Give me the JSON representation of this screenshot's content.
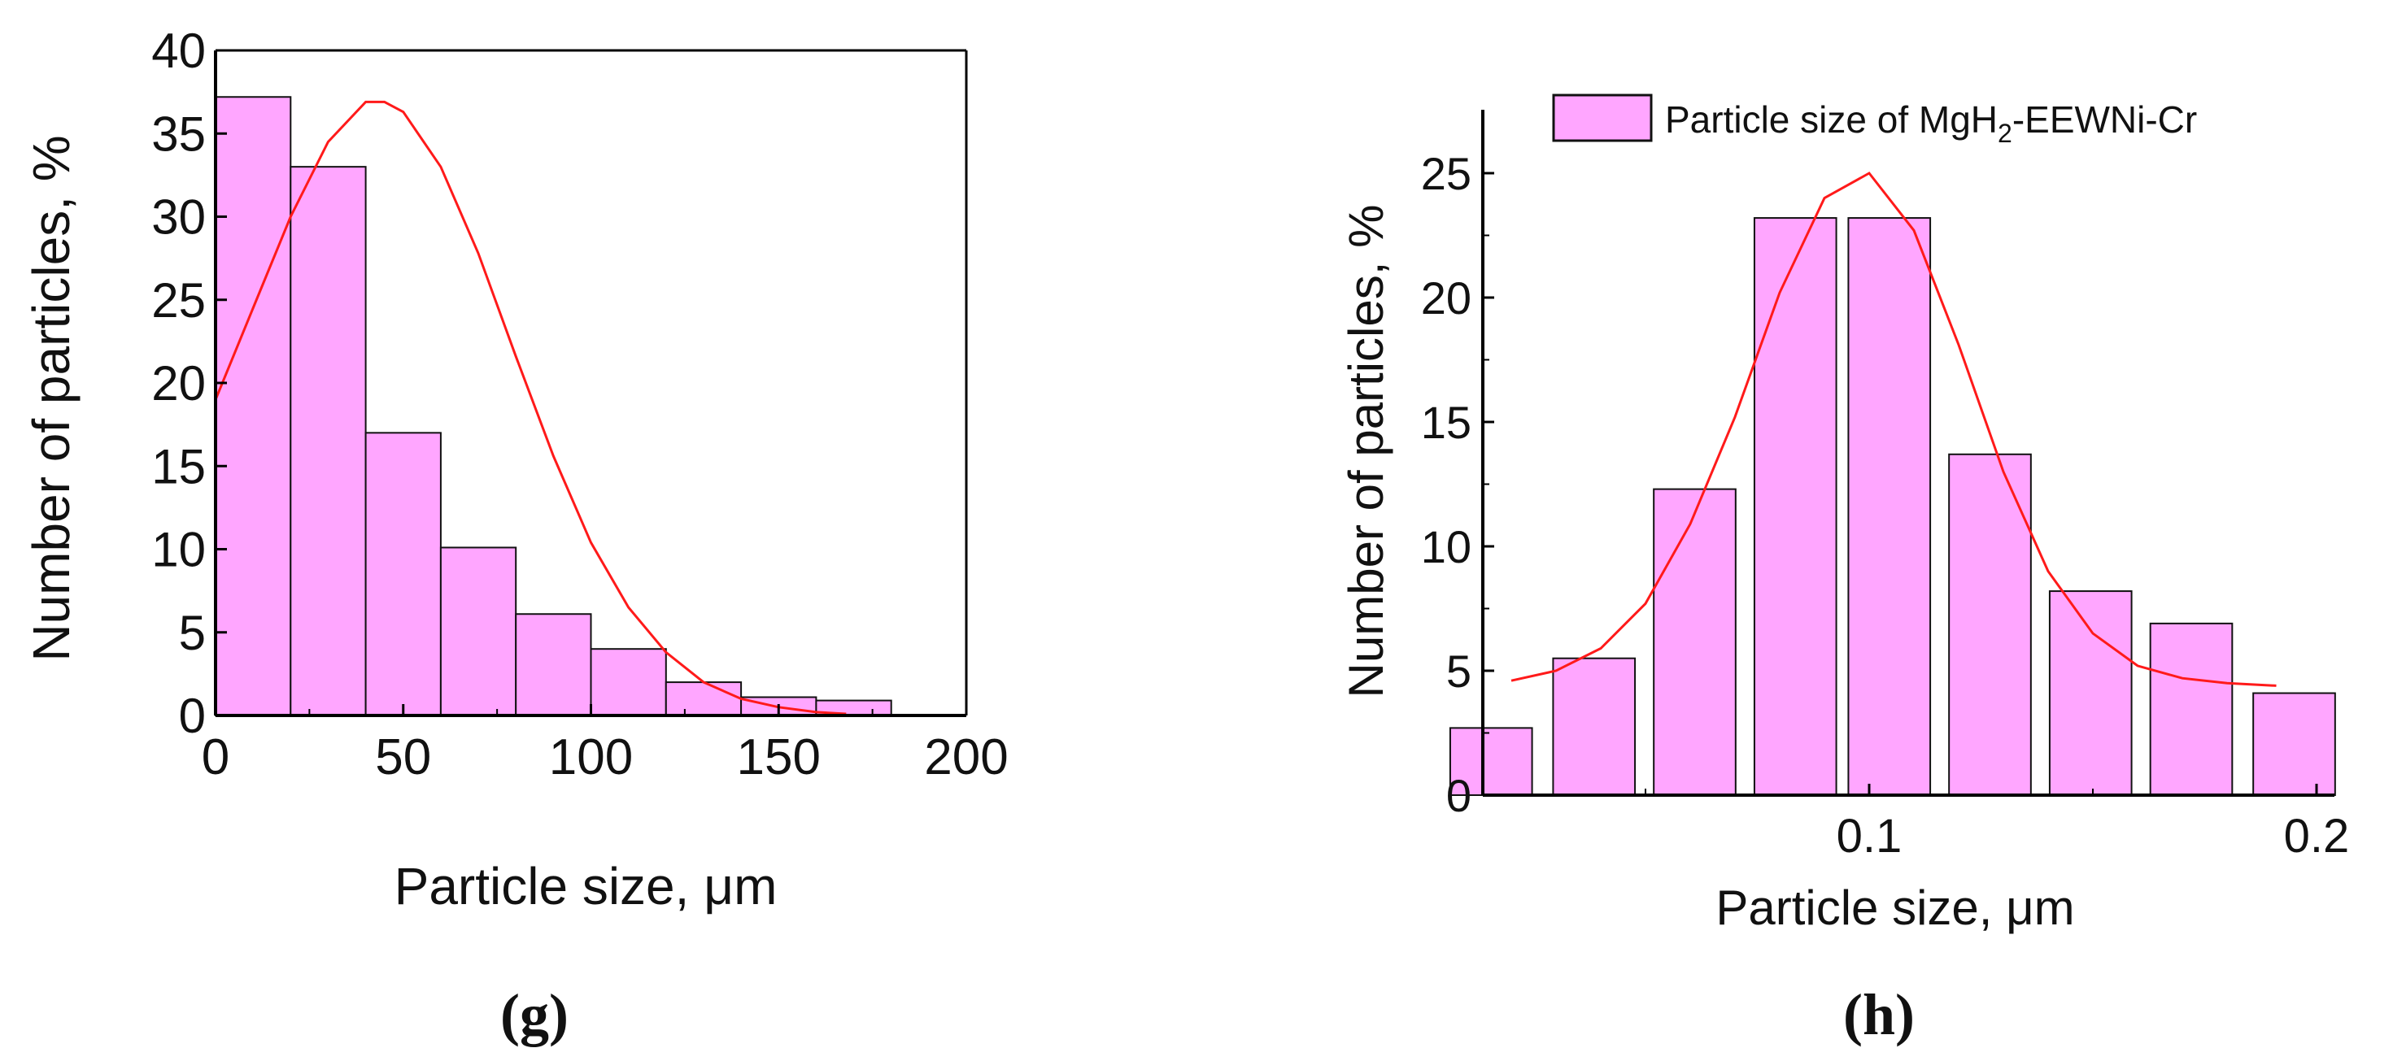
{
  "colors": {
    "bar_fill": "#ffa6ff",
    "bar_stroke": "#111111",
    "fit_line": "#ff1a1a",
    "axis": "#000000"
  },
  "chart_data": [
    {
      "type": "bar",
      "panel_label": "(g)",
      "title": "",
      "xlabel": "Particle size, μm",
      "ylabel": "Number of particles, %",
      "xlim": [
        0,
        200
      ],
      "ylim": [
        0,
        40
      ],
      "x_ticks": [
        "0",
        "50",
        "100",
        "150",
        "200"
      ],
      "y_ticks": [
        "0",
        "5",
        "10",
        "15",
        "20",
        "25",
        "30",
        "35",
        "40"
      ],
      "bin_width": 20,
      "bars": [
        {
          "x": 10,
          "value": 37.2
        },
        {
          "x": 30,
          "value": 33.0
        },
        {
          "x": 50,
          "value": 17.0
        },
        {
          "x": 70,
          "value": 10.1
        },
        {
          "x": 90,
          "value": 6.1
        },
        {
          "x": 110,
          "value": 4.0
        },
        {
          "x": 130,
          "value": 2.0
        },
        {
          "x": 150,
          "value": 1.1
        },
        {
          "x": 170,
          "value": 0.9
        }
      ],
      "fit_curve": {
        "x": [
          0,
          10,
          20,
          30,
          40,
          45,
          50,
          60,
          70,
          80,
          90,
          100,
          110,
          120,
          130,
          140,
          150,
          160,
          168
        ],
        "y": [
          19.0,
          24.5,
          30.0,
          34.5,
          36.9,
          36.9,
          36.3,
          33.0,
          27.8,
          21.6,
          15.6,
          10.4,
          6.5,
          3.8,
          2.0,
          1.0,
          0.5,
          0.2,
          0.1
        ]
      }
    },
    {
      "type": "bar",
      "panel_label": "(h)",
      "title": "",
      "xlabel": "Particle size, μm",
      "ylabel": "Number of particles, %",
      "xlim": [
        0.0,
        0.2
      ],
      "ylim": [
        0,
        27.5
      ],
      "x_ticks": [
        {
          "value": 0.1,
          "label": "0.1"
        },
        {
          "value": 0.2,
          "label": "0.2"
        }
      ],
      "y_ticks": [
        "0",
        "5",
        "10",
        "15",
        "20",
        "25"
      ],
      "bin_width": 0.0183,
      "legend": {
        "label_main": "Particle size of MgH",
        "label_sub": "2",
        "label_tail": "-EEWNi-Cr",
        "position": "top"
      },
      "bars": [
        {
          "x": 0.0155,
          "value": 2.7
        },
        {
          "x": 0.0385,
          "value": 5.5
        },
        {
          "x": 0.061,
          "value": 12.3
        },
        {
          "x": 0.0835,
          "value": 23.2
        },
        {
          "x": 0.1045,
          "value": 23.2
        },
        {
          "x": 0.127,
          "value": 13.7
        },
        {
          "x": 0.1495,
          "value": 8.2
        },
        {
          "x": 0.172,
          "value": 6.9
        },
        {
          "x": 0.195,
          "value": 4.1
        }
      ],
      "fit_curve": {
        "x": [
          0.02,
          0.03,
          0.04,
          0.05,
          0.06,
          0.07,
          0.08,
          0.09,
          0.1,
          0.11,
          0.12,
          0.13,
          0.14,
          0.15,
          0.16,
          0.17,
          0.18,
          0.191
        ],
        "y": [
          4.6,
          5.0,
          5.9,
          7.7,
          10.9,
          15.2,
          20.2,
          24.0,
          25.0,
          22.7,
          18.1,
          13.0,
          9.0,
          6.5,
          5.2,
          4.7,
          4.5,
          4.4
        ]
      }
    }
  ]
}
